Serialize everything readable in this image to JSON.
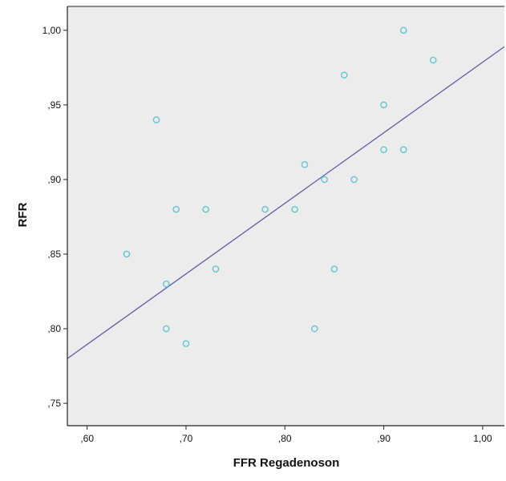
{
  "chart_data": {
    "type": "scatter",
    "title": "",
    "xlabel": "FFR Regadenoson",
    "ylabel": "RFR",
    "xlim": [
      0.58,
      1.022
    ],
    "ylim": [
      0.735,
      1.016
    ],
    "grid": false,
    "legend": "none",
    "x_ticks": [
      0.6,
      0.7,
      0.8,
      0.9,
      1.0
    ],
    "x_tick_labels": [
      ",60",
      ",70",
      ",80",
      ",90",
      "1,00"
    ],
    "y_ticks": [
      0.75,
      0.8,
      0.85,
      0.9,
      0.95,
      1.0
    ],
    "y_tick_labels": [
      ",75",
      ",80",
      ",85",
      ",90",
      ",95",
      "1,00"
    ],
    "points": [
      {
        "x": 0.64,
        "y": 0.85
      },
      {
        "x": 0.67,
        "y": 0.94
      },
      {
        "x": 0.68,
        "y": 0.83
      },
      {
        "x": 0.68,
        "y": 0.8
      },
      {
        "x": 0.69,
        "y": 0.88
      },
      {
        "x": 0.7,
        "y": 0.79
      },
      {
        "x": 0.72,
        "y": 0.88
      },
      {
        "x": 0.73,
        "y": 0.84
      },
      {
        "x": 0.78,
        "y": 0.88
      },
      {
        "x": 0.81,
        "y": 0.88
      },
      {
        "x": 0.82,
        "y": 0.91
      },
      {
        "x": 0.83,
        "y": 0.8
      },
      {
        "x": 0.84,
        "y": 0.9
      },
      {
        "x": 0.85,
        "y": 0.84
      },
      {
        "x": 0.86,
        "y": 0.97
      },
      {
        "x": 0.87,
        "y": 0.9
      },
      {
        "x": 0.9,
        "y": 0.95
      },
      {
        "x": 0.9,
        "y": 0.92
      },
      {
        "x": 0.92,
        "y": 1.0
      },
      {
        "x": 0.92,
        "y": 0.92
      },
      {
        "x": 0.95,
        "y": 0.98
      }
    ],
    "fit_line": {
      "x1": 0.58,
      "y1": 0.78,
      "x2": 1.022,
      "y2": 0.989
    },
    "colors": {
      "plot_background": "#ececec",
      "point_stroke": "#5cc8d0",
      "fit_line": "#5b5ea6",
      "axis": "#222222"
    }
  }
}
